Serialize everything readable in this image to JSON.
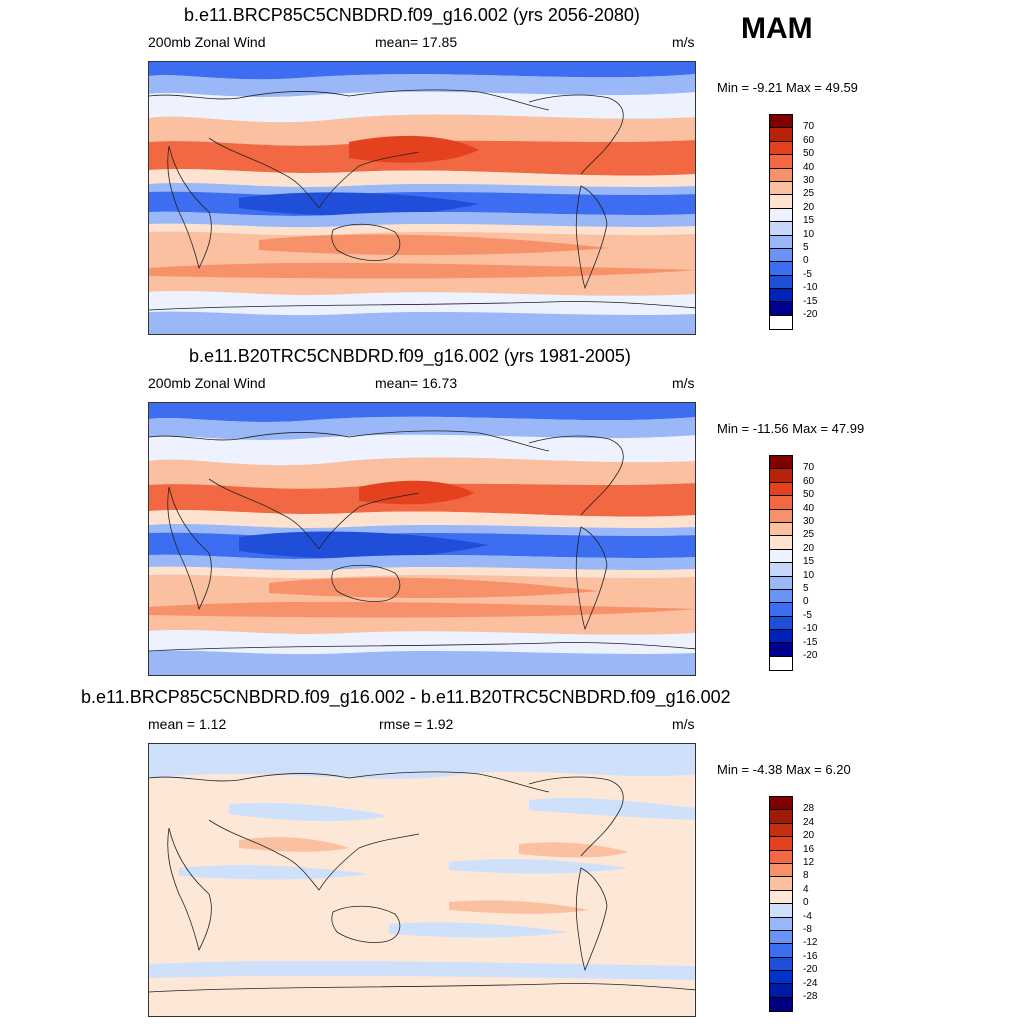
{
  "season": "MAM",
  "colors": {
    "main_palette": [
      "#00008f",
      "#0022b8",
      "#1f4fd9",
      "#3d6df0",
      "#6a93f5",
      "#9ab8f7",
      "#c6d7fb",
      "#eef2ff",
      "#fde3cf",
      "#fbc0a0",
      "#f7916a",
      "#f26842",
      "#e4411f",
      "#b82208",
      "#800000"
    ],
    "diff_palette": [
      "#000080",
      "#001aa6",
      "#0033cc",
      "#1f4fd9",
      "#3d6df0",
      "#6a93f5",
      "#9ab8f7",
      "#cfe0fb",
      "#fde8d7",
      "#fbc0a0",
      "#f7916a",
      "#f26842",
      "#e4411f",
      "#c23010",
      "#a01a05",
      "#800000"
    ]
  },
  "panels": [
    {
      "id": "future",
      "title": "b.e11.BRCP85C5CNBDRD.f09_g16.002 (yrs 2056-2080)",
      "left_label": "200mb Zonal Wind",
      "center_label": "mean=  17.85",
      "units": "m/s",
      "minmax": "Min =  -9.21 Max =  49.59"
    },
    {
      "id": "historical",
      "title": "b.e11.B20TRC5CNBDRD.f09_g16.002 (yrs 1981-2005)",
      "left_label": "200mb Zonal Wind",
      "center_label": "mean=  16.73",
      "units": "m/s",
      "minmax": "Min = -11.56 Max =  47.99"
    },
    {
      "id": "difference",
      "title": "b.e11.BRCP85C5CNBDRD.f09_g16.002 - b.e11.B20TRC5CNBDRD.f09_g16.002",
      "left_label": "mean =   1.12",
      "center_label": "rmse =   1.92",
      "units": "m/s",
      "minmax": "Min =  -4.38 Max =   6.20"
    }
  ],
  "chart_data": [
    {
      "type": "heatmap",
      "title": "b.e11.BRCP85C5CNBDRD.f09_g16.002 (yrs 2056-2080)",
      "variable": "200mb Zonal Wind",
      "units": "m/s",
      "mean": 17.85,
      "min": -9.21,
      "max": 49.59,
      "colorbar_levels": [
        70,
        60,
        50,
        40,
        30,
        25,
        20,
        15,
        10,
        5,
        0,
        -5,
        -10,
        -15,
        -20
      ],
      "zonal_bands": [
        {
          "lat": 85,
          "value": 3
        },
        {
          "lat": 70,
          "value": 8
        },
        {
          "lat": 55,
          "value": 14
        },
        {
          "lat": 40,
          "value": 30
        },
        {
          "lat": 32,
          "value": 42
        },
        {
          "lat": 20,
          "value": 24
        },
        {
          "lat": 10,
          "value": 2
        },
        {
          "lat": 0,
          "value": -6
        },
        {
          "lat": -10,
          "value": 6
        },
        {
          "lat": -20,
          "value": 18
        },
        {
          "lat": -30,
          "value": 32
        },
        {
          "lat": -45,
          "value": 30
        },
        {
          "lat": -60,
          "value": 18
        },
        {
          "lat": -75,
          "value": 8
        },
        {
          "lat": -88,
          "value": 2
        }
      ]
    },
    {
      "type": "heatmap",
      "title": "b.e11.B20TRC5CNBDRD.f09_g16.002 (yrs 1981-2005)",
      "variable": "200mb Zonal Wind",
      "units": "m/s",
      "mean": 16.73,
      "min": -11.56,
      "max": 47.99,
      "colorbar_levels": [
        70,
        60,
        50,
        40,
        30,
        25,
        20,
        15,
        10,
        5,
        0,
        -5,
        -10,
        -15,
        -20
      ],
      "zonal_bands": [
        {
          "lat": 85,
          "value": 2
        },
        {
          "lat": 70,
          "value": 7
        },
        {
          "lat": 55,
          "value": 13
        },
        {
          "lat": 40,
          "value": 28
        },
        {
          "lat": 32,
          "value": 40
        },
        {
          "lat": 20,
          "value": 22
        },
        {
          "lat": 10,
          "value": 1
        },
        {
          "lat": 0,
          "value": -7
        },
        {
          "lat": -10,
          "value": 5
        },
        {
          "lat": -20,
          "value": 17
        },
        {
          "lat": -30,
          "value": 30
        },
        {
          "lat": -45,
          "value": 29
        },
        {
          "lat": -60,
          "value": 17
        },
        {
          "lat": -75,
          "value": 7
        },
        {
          "lat": -88,
          "value": 2
        }
      ]
    },
    {
      "type": "heatmap",
      "title": "b.e11.BRCP85C5CNBDRD.f09_g16.002 - b.e11.B20TRC5CNBDRD.f09_g16.002",
      "units": "m/s",
      "mean": 1.12,
      "rmse": 1.92,
      "min": -4.38,
      "max": 6.2,
      "colorbar_levels": [
        28,
        24,
        20,
        16,
        12,
        8,
        4,
        0,
        -4,
        -8,
        -12,
        -16,
        -20,
        -24,
        -28
      ],
      "zonal_bands": [
        {
          "lat": 85,
          "value": 0.5
        },
        {
          "lat": 65,
          "value": -1
        },
        {
          "lat": 45,
          "value": 1
        },
        {
          "lat": 25,
          "value": 2
        },
        {
          "lat": 5,
          "value": -1
        },
        {
          "lat": -15,
          "value": 1
        },
        {
          "lat": -35,
          "value": 2
        },
        {
          "lat": -55,
          "value": 1
        },
        {
          "lat": -75,
          "value": -1
        },
        {
          "lat": -88,
          "value": 0.5
        }
      ]
    }
  ]
}
